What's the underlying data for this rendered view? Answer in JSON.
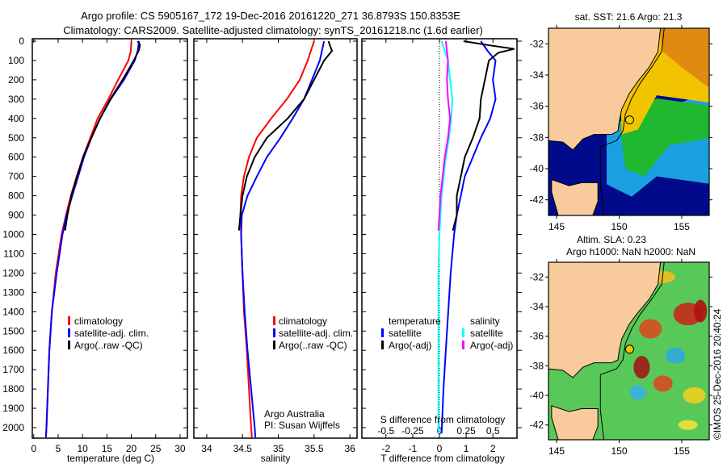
{
  "header": {
    "title_line1": "Argo profile: CS 5905167_172 19-Dec-2016 20161220_271 36.8793S 150.8353E",
    "title_line2": "Climatology: CARS2009. Satellite-adjusted climatology: synTS_20161218.nc (1.6d earlier)"
  },
  "credit": "©IMOS 25-Dec-2016 20:40:24",
  "colors": {
    "climatology": "#ff0000",
    "satellite": "#0000ff",
    "argo": "#000000",
    "s_satellite": "#00ffff",
    "s_argo": "#ff00ff"
  },
  "chart_data": [
    {
      "type": "line",
      "name": "temperature-profile",
      "xlabel": "temperature (deg C)",
      "xlim": [
        -0.3,
        31.5
      ],
      "xticks": [
        0,
        5,
        10,
        15,
        20,
        25,
        30
      ],
      "ylim": [
        0,
        2070
      ],
      "yticks": [
        0,
        100,
        200,
        300,
        400,
        500,
        600,
        700,
        800,
        900,
        1000,
        1100,
        1200,
        1300,
        1400,
        1500,
        1600,
        1700,
        1800,
        1900,
        2000
      ],
      "legend": [
        "climatology",
        "satellite-adj. clim.",
        "Argo(..raw -QC)"
      ],
      "series": [
        {
          "name": "climatology",
          "color": "#ff0000",
          "depth": [
            0,
            50,
            100,
            200,
            300,
            400,
            500,
            600,
            700,
            800,
            900,
            1000,
            1200,
            1400,
            1600,
            1800,
            2000,
            2050
          ],
          "values": [
            20.0,
            19.9,
            19.4,
            17.3,
            15.3,
            13.1,
            11.6,
            10.1,
            8.8,
            7.6,
            6.6,
            5.7,
            4.5,
            3.7,
            3.2,
            2.9,
            2.6,
            2.5
          ]
        },
        {
          "name": "satellite-adj. clim.",
          "color": "#0000ff",
          "depth": [
            0,
            50,
            100,
            200,
            300,
            400,
            500,
            600,
            700,
            800,
            900,
            1000,
            1200,
            1400,
            1600,
            1800,
            2000,
            2050
          ],
          "values": [
            21.6,
            21.3,
            20.7,
            18.5,
            15.8,
            13.6,
            11.8,
            10.3,
            9.1,
            7.9,
            6.7,
            5.9,
            4.7,
            3.7,
            3.2,
            2.9,
            2.6,
            2.5
          ]
        },
        {
          "name": "Argo(..raw -QC)",
          "color": "#000000",
          "depth": [
            0,
            20,
            50,
            100,
            200,
            300,
            400,
            500,
            600,
            700,
            800,
            900,
            980
          ],
          "values": [
            21.3,
            21.8,
            21.5,
            20.5,
            18.2,
            15.7,
            13.6,
            11.8,
            10.1,
            8.9,
            7.7,
            6.9,
            6.4
          ]
        }
      ]
    },
    {
      "type": "line",
      "name": "salinity-profile",
      "xlabel": "salinity",
      "xlim": [
        33.82,
        36.1
      ],
      "xticks": [
        34,
        34.5,
        35,
        35.5,
        36
      ],
      "ylim": [
        0,
        2070
      ],
      "legend": [
        "climatology",
        "satellite-adj. clim.",
        "Argo(..raw -QC)"
      ],
      "annotation": [
        "Argo Australia",
        "PI: Susan Wijffels"
      ],
      "series": [
        {
          "name": "climatology",
          "color": "#ff0000",
          "depth": [
            0,
            100,
            200,
            300,
            400,
            500,
            600,
            700,
            800,
            900,
            1000,
            1200,
            1400,
            1600,
            1800,
            2000,
            2050
          ],
          "values": [
            35.5,
            35.41,
            35.3,
            35.12,
            34.9,
            34.7,
            34.59,
            34.52,
            34.48,
            34.47,
            34.48,
            34.5,
            34.52,
            34.56,
            34.59,
            34.62,
            34.63
          ]
        },
        {
          "name": "satellite-adj. clim.",
          "color": "#0000ff",
          "depth": [
            0,
            100,
            200,
            300,
            400,
            500,
            600,
            700,
            800,
            900,
            1000,
            1200,
            1400,
            1600,
            1800,
            2000,
            2050
          ],
          "values": [
            35.64,
            35.58,
            35.47,
            35.36,
            35.2,
            35.03,
            34.84,
            34.7,
            34.57,
            34.49,
            34.48,
            34.5,
            34.53,
            34.57,
            34.62,
            34.67,
            34.68
          ]
        },
        {
          "name": "Argo(..raw -QC)",
          "color": "#000000",
          "depth": [
            0,
            50,
            100,
            200,
            300,
            400,
            500,
            600,
            700,
            800,
            900,
            980
          ],
          "values": [
            35.7,
            35.75,
            35.64,
            35.5,
            35.36,
            35.13,
            34.84,
            34.67,
            34.56,
            34.5,
            34.47,
            34.45
          ]
        }
      ]
    },
    {
      "type": "line",
      "name": "difference-profile",
      "xlabel": "T difference from climatology",
      "xlabel2": "S difference from climatology",
      "xlim": [
        -2.9,
        2.9
      ],
      "xticks": [
        -2,
        -1,
        0,
        1,
        2
      ],
      "xlim_s": [
        -0.725,
        0.725
      ],
      "xticks_s": [
        -0.5,
        -0.25,
        0,
        0.25,
        0.5
      ],
      "xticklabels_s": [
        "-0.5",
        "-0.25",
        "0",
        "0.25",
        "0.5"
      ],
      "ylim": [
        0,
        2070
      ],
      "legend_headers": [
        "temperature",
        "salinity"
      ],
      "legend": [
        "satellite",
        "Argo(-adj)",
        "satellite",
        "Argo(-adj)"
      ],
      "series": [
        {
          "name": "T satellite",
          "axis": "T",
          "color": "#0000ff",
          "depth": [
            0,
            50,
            100,
            200,
            300,
            400,
            500,
            600,
            700,
            800,
            900,
            1000,
            1200,
            1400,
            1600,
            1800,
            2000,
            2030
          ],
          "values": [
            1.55,
            1.8,
            2.1,
            2.0,
            2.1,
            1.9,
            1.55,
            1.25,
            0.95,
            0.8,
            0.65,
            0.55,
            0.42,
            0.33,
            0.24,
            0.15,
            0.09,
            0.08
          ]
        },
        {
          "name": "T Argo(-adj)",
          "axis": "T",
          "color": "#000000",
          "depth": [
            0,
            20,
            40,
            60,
            100,
            200,
            300,
            400,
            500,
            600,
            700,
            800,
            900,
            980
          ],
          "values": [
            0.9,
            1.8,
            2.8,
            2.2,
            1.85,
            1.7,
            1.55,
            1.5,
            1.25,
            0.95,
            0.8,
            0.65,
            0.65,
            0.5
          ]
        },
        {
          "name": "S satellite",
          "axis": "S",
          "color": "#00ffff",
          "depth": [
            0,
            100,
            200,
            300,
            400,
            500,
            600,
            700,
            800,
            1000,
            1200,
            1600,
            2000,
            2030
          ],
          "values": [
            0.02,
            0.08,
            0.1,
            0.12,
            0.11,
            0.09,
            0.06,
            0.04,
            0.02,
            0.0,
            -0.01,
            -0.01,
            -0.01,
            -0.01
          ]
        },
        {
          "name": "S Argo(-adj)",
          "axis": "S",
          "color": "#ff00ff",
          "depth": [
            0,
            100,
            200,
            300,
            400,
            500,
            600,
            700,
            800,
            900,
            980
          ],
          "values": [
            0.06,
            0.08,
            0.07,
            0.08,
            0.1,
            0.08,
            0.05,
            0.03,
            0.01,
            0.0,
            -0.01
          ]
        }
      ]
    }
  ],
  "maps": [
    {
      "title": "sat. SST: 21.6 Argo: 21.3",
      "lon_ticks": [
        145,
        150,
        155
      ],
      "lat_ticks": [
        -32,
        -34,
        -36,
        -38,
        -40,
        -42
      ],
      "lon_range": [
        144.35,
        157.2
      ],
      "lat_range": [
        -43.0,
        -31.0
      ],
      "argo_position": [
        150.8353,
        -36.8793
      ]
    },
    {
      "title_line1": "Altim. SLA: 0.23",
      "title_line2": "Argo h1000: NaN h2000: NaN",
      "lon_ticks": [
        145,
        150,
        155
      ],
      "lat_ticks": [
        -32,
        -34,
        -36,
        -38,
        -40,
        -42
      ],
      "lon_range": [
        144.35,
        157.2
      ],
      "lat_range": [
        -43.0,
        -31.0
      ],
      "argo_position": [
        150.8353,
        -36.8793
      ]
    }
  ]
}
